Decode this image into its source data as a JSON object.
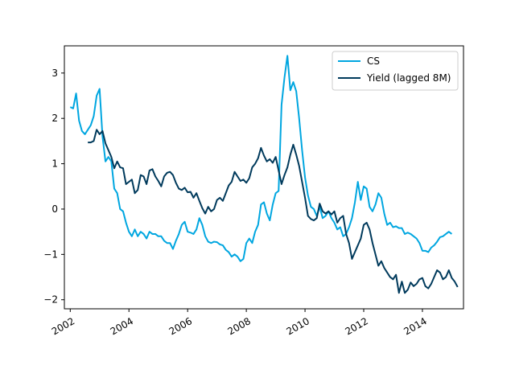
{
  "chart_data": {
    "type": "line",
    "title": "",
    "xlabel": "",
    "ylabel": "",
    "xlim": [
      2001.8,
      2015.4
    ],
    "ylim": [
      -2.2,
      3.6
    ],
    "x_ticks": [
      2002,
      2004,
      2006,
      2008,
      2010,
      2012,
      2014
    ],
    "x_tick_labels": [
      "2002",
      "2004",
      "2006",
      "2008",
      "2010",
      "2012",
      "2014"
    ],
    "y_ticks": [
      -2,
      -1,
      0,
      1,
      2,
      3
    ],
    "y_tick_labels": [
      "−2",
      "−1",
      "0",
      "1",
      "2",
      "3"
    ],
    "grid": false,
    "legend_position": "top-right",
    "colors": {
      "CS": "#00a6e0",
      "Yield (lagged 8M)": "#003a5c"
    },
    "series": [
      {
        "name": "CS",
        "points": [
          [
            2002.0,
            2.25
          ],
          [
            2002.1,
            2.22
          ],
          [
            2002.2,
            2.55
          ],
          [
            2002.3,
            1.95
          ],
          [
            2002.4,
            1.72
          ],
          [
            2002.5,
            1.65
          ],
          [
            2002.6,
            1.75
          ],
          [
            2002.7,
            1.85
          ],
          [
            2002.8,
            2.05
          ],
          [
            2002.9,
            2.5
          ],
          [
            2003.0,
            2.65
          ],
          [
            2003.1,
            1.6
          ],
          [
            2003.2,
            1.05
          ],
          [
            2003.3,
            1.15
          ],
          [
            2003.4,
            1.05
          ],
          [
            2003.5,
            0.45
          ],
          [
            2003.6,
            0.35
          ],
          [
            2003.7,
            0.0
          ],
          [
            2003.8,
            -0.05
          ],
          [
            2003.9,
            -0.3
          ],
          [
            2004.0,
            -0.5
          ],
          [
            2004.1,
            -0.6
          ],
          [
            2004.2,
            -0.45
          ],
          [
            2004.3,
            -0.6
          ],
          [
            2004.4,
            -0.5
          ],
          [
            2004.5,
            -0.55
          ],
          [
            2004.6,
            -0.65
          ],
          [
            2004.7,
            -0.5
          ],
          [
            2004.8,
            -0.55
          ],
          [
            2004.9,
            -0.55
          ],
          [
            2005.0,
            -0.6
          ],
          [
            2005.1,
            -0.6
          ],
          [
            2005.2,
            -0.7
          ],
          [
            2005.3,
            -0.75
          ],
          [
            2005.4,
            -0.75
          ],
          [
            2005.5,
            -0.88
          ],
          [
            2005.6,
            -0.7
          ],
          [
            2005.7,
            -0.55
          ],
          [
            2005.8,
            -0.35
          ],
          [
            2005.9,
            -0.28
          ],
          [
            2006.0,
            -0.5
          ],
          [
            2006.1,
            -0.52
          ],
          [
            2006.2,
            -0.55
          ],
          [
            2006.3,
            -0.45
          ],
          [
            2006.4,
            -0.2
          ],
          [
            2006.5,
            -0.35
          ],
          [
            2006.6,
            -0.6
          ],
          [
            2006.7,
            -0.72
          ],
          [
            2006.8,
            -0.75
          ],
          [
            2006.9,
            -0.72
          ],
          [
            2007.0,
            -0.73
          ],
          [
            2007.1,
            -0.78
          ],
          [
            2007.2,
            -0.8
          ],
          [
            2007.3,
            -0.9
          ],
          [
            2007.4,
            -0.95
          ],
          [
            2007.5,
            -1.05
          ],
          [
            2007.6,
            -1.0
          ],
          [
            2007.7,
            -1.05
          ],
          [
            2007.8,
            -1.15
          ],
          [
            2007.9,
            -1.1
          ],
          [
            2008.0,
            -0.75
          ],
          [
            2008.1,
            -0.65
          ],
          [
            2008.2,
            -0.75
          ],
          [
            2008.3,
            -0.5
          ],
          [
            2008.4,
            -0.35
          ],
          [
            2008.5,
            0.1
          ],
          [
            2008.6,
            0.15
          ],
          [
            2008.7,
            -0.1
          ],
          [
            2008.8,
            -0.25
          ],
          [
            2008.9,
            0.1
          ],
          [
            2009.0,
            0.35
          ],
          [
            2009.1,
            0.4
          ],
          [
            2009.2,
            2.3
          ],
          [
            2009.3,
            2.9
          ],
          [
            2009.4,
            3.38
          ],
          [
            2009.5,
            2.62
          ],
          [
            2009.6,
            2.8
          ],
          [
            2009.7,
            2.6
          ],
          [
            2009.8,
            2.0
          ],
          [
            2009.9,
            1.3
          ],
          [
            2010.0,
            0.7
          ],
          [
            2010.1,
            0.3
          ],
          [
            2010.2,
            0.05
          ],
          [
            2010.3,
            0.0
          ],
          [
            2010.4,
            -0.15
          ],
          [
            2010.5,
            0.05
          ],
          [
            2010.6,
            -0.2
          ],
          [
            2010.7,
            -0.15
          ],
          [
            2010.8,
            -0.05
          ],
          [
            2010.9,
            -0.2
          ],
          [
            2011.0,
            -0.3
          ],
          [
            2011.1,
            -0.45
          ],
          [
            2011.2,
            -0.4
          ],
          [
            2011.3,
            -0.6
          ],
          [
            2011.4,
            -0.55
          ],
          [
            2011.5,
            -0.4
          ],
          [
            2011.6,
            -0.2
          ],
          [
            2011.7,
            0.15
          ],
          [
            2011.8,
            0.6
          ],
          [
            2011.9,
            0.2
          ],
          [
            2012.0,
            0.5
          ],
          [
            2012.1,
            0.45
          ],
          [
            2012.2,
            0.05
          ],
          [
            2012.3,
            -0.05
          ],
          [
            2012.4,
            0.1
          ],
          [
            2012.5,
            0.35
          ],
          [
            2012.6,
            0.25
          ],
          [
            2012.7,
            -0.1
          ],
          [
            2012.8,
            -0.35
          ],
          [
            2012.9,
            -0.3
          ],
          [
            2013.0,
            -0.4
          ],
          [
            2013.1,
            -0.38
          ],
          [
            2013.2,
            -0.42
          ],
          [
            2013.3,
            -0.42
          ],
          [
            2013.4,
            -0.55
          ],
          [
            2013.5,
            -0.52
          ],
          [
            2013.6,
            -0.55
          ],
          [
            2013.7,
            -0.6
          ],
          [
            2013.8,
            -0.65
          ],
          [
            2013.9,
            -0.75
          ],
          [
            2014.0,
            -0.92
          ],
          [
            2014.1,
            -0.92
          ],
          [
            2014.2,
            -0.95
          ],
          [
            2014.3,
            -0.85
          ],
          [
            2014.4,
            -0.8
          ],
          [
            2014.5,
            -0.72
          ],
          [
            2014.6,
            -0.62
          ],
          [
            2014.7,
            -0.6
          ],
          [
            2014.8,
            -0.55
          ],
          [
            2014.9,
            -0.5
          ],
          [
            2015.0,
            -0.55
          ]
        ]
      },
      {
        "name": "Yield (lagged 8M)",
        "points": [
          [
            2002.6,
            1.47
          ],
          [
            2002.7,
            1.47
          ],
          [
            2002.8,
            1.5
          ],
          [
            2002.9,
            1.75
          ],
          [
            2003.0,
            1.65
          ],
          [
            2003.1,
            1.72
          ],
          [
            2003.2,
            1.45
          ],
          [
            2003.3,
            1.3
          ],
          [
            2003.4,
            1.15
          ],
          [
            2003.5,
            0.9
          ],
          [
            2003.6,
            1.05
          ],
          [
            2003.7,
            0.92
          ],
          [
            2003.8,
            0.9
          ],
          [
            2003.9,
            0.55
          ],
          [
            2004.0,
            0.6
          ],
          [
            2004.1,
            0.65
          ],
          [
            2004.2,
            0.35
          ],
          [
            2004.3,
            0.42
          ],
          [
            2004.4,
            0.75
          ],
          [
            2004.5,
            0.72
          ],
          [
            2004.6,
            0.55
          ],
          [
            2004.7,
            0.85
          ],
          [
            2004.8,
            0.88
          ],
          [
            2004.9,
            0.72
          ],
          [
            2005.0,
            0.62
          ],
          [
            2005.1,
            0.5
          ],
          [
            2005.2,
            0.72
          ],
          [
            2005.3,
            0.8
          ],
          [
            2005.4,
            0.82
          ],
          [
            2005.5,
            0.75
          ],
          [
            2005.6,
            0.58
          ],
          [
            2005.7,
            0.45
          ],
          [
            2005.8,
            0.42
          ],
          [
            2005.9,
            0.47
          ],
          [
            2006.0,
            0.37
          ],
          [
            2006.1,
            0.38
          ],
          [
            2006.2,
            0.25
          ],
          [
            2006.3,
            0.35
          ],
          [
            2006.4,
            0.18
          ],
          [
            2006.5,
            0.02
          ],
          [
            2006.6,
            -0.1
          ],
          [
            2006.7,
            0.05
          ],
          [
            2006.8,
            -0.05
          ],
          [
            2006.9,
            0.0
          ],
          [
            2007.0,
            0.2
          ],
          [
            2007.1,
            0.25
          ],
          [
            2007.2,
            0.18
          ],
          [
            2007.3,
            0.35
          ],
          [
            2007.4,
            0.52
          ],
          [
            2007.5,
            0.6
          ],
          [
            2007.6,
            0.82
          ],
          [
            2007.7,
            0.72
          ],
          [
            2007.8,
            0.62
          ],
          [
            2007.9,
            0.65
          ],
          [
            2008.0,
            0.58
          ],
          [
            2008.1,
            0.68
          ],
          [
            2008.2,
            0.92
          ],
          [
            2008.3,
            1.0
          ],
          [
            2008.4,
            1.12
          ],
          [
            2008.5,
            1.35
          ],
          [
            2008.6,
            1.18
          ],
          [
            2008.7,
            1.05
          ],
          [
            2008.8,
            1.1
          ],
          [
            2008.9,
            1.02
          ],
          [
            2009.0,
            1.15
          ],
          [
            2009.1,
            0.85
          ],
          [
            2009.2,
            0.55
          ],
          [
            2009.3,
            0.75
          ],
          [
            2009.4,
            0.92
          ],
          [
            2009.5,
            1.2
          ],
          [
            2009.6,
            1.42
          ],
          [
            2009.7,
            1.2
          ],
          [
            2009.8,
            0.95
          ],
          [
            2009.9,
            0.6
          ],
          [
            2010.0,
            0.25
          ],
          [
            2010.1,
            -0.15
          ],
          [
            2010.2,
            -0.22
          ],
          [
            2010.3,
            -0.25
          ],
          [
            2010.4,
            -0.2
          ],
          [
            2010.5,
            0.12
          ],
          [
            2010.6,
            -0.05
          ],
          [
            2010.7,
            -0.1
          ],
          [
            2010.8,
            -0.05
          ],
          [
            2010.9,
            -0.12
          ],
          [
            2011.0,
            -0.05
          ],
          [
            2011.1,
            -0.3
          ],
          [
            2011.2,
            -0.2
          ],
          [
            2011.3,
            -0.15
          ],
          [
            2011.4,
            -0.55
          ],
          [
            2011.5,
            -0.75
          ],
          [
            2011.6,
            -1.1
          ],
          [
            2011.7,
            -0.95
          ],
          [
            2011.8,
            -0.8
          ],
          [
            2011.9,
            -0.65
          ],
          [
            2012.0,
            -0.35
          ],
          [
            2012.1,
            -0.3
          ],
          [
            2012.2,
            -0.45
          ],
          [
            2012.3,
            -0.75
          ],
          [
            2012.4,
            -1.0
          ],
          [
            2012.5,
            -1.25
          ],
          [
            2012.6,
            -1.15
          ],
          [
            2012.7,
            -1.3
          ],
          [
            2012.8,
            -1.4
          ],
          [
            2012.9,
            -1.5
          ],
          [
            2013.0,
            -1.55
          ],
          [
            2013.1,
            -1.45
          ],
          [
            2013.2,
            -1.85
          ],
          [
            2013.3,
            -1.6
          ],
          [
            2013.4,
            -1.85
          ],
          [
            2013.5,
            -1.78
          ],
          [
            2013.6,
            -1.62
          ],
          [
            2013.7,
            -1.7
          ],
          [
            2013.8,
            -1.65
          ],
          [
            2013.9,
            -1.55
          ],
          [
            2014.0,
            -1.52
          ],
          [
            2014.1,
            -1.7
          ],
          [
            2014.2,
            -1.75
          ],
          [
            2014.3,
            -1.65
          ],
          [
            2014.4,
            -1.5
          ],
          [
            2014.5,
            -1.35
          ],
          [
            2014.6,
            -1.4
          ],
          [
            2014.7,
            -1.55
          ],
          [
            2014.8,
            -1.5
          ],
          [
            2014.9,
            -1.35
          ],
          [
            2015.0,
            -1.52
          ],
          [
            2015.1,
            -1.6
          ],
          [
            2015.2,
            -1.72
          ]
        ]
      }
    ]
  }
}
